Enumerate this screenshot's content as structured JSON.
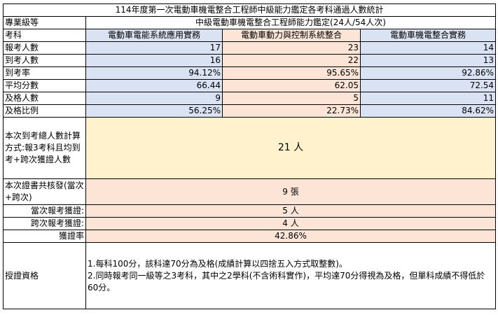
{
  "title": "114年度第一次電動車機電整合工程師中級能力鑑定各考科通過人數統計",
  "level": {
    "label": "專業級等",
    "value": "中級電動車機電整合工程師能力鑑定(24人/54人次)"
  },
  "subjects": {
    "label": "考科",
    "items": [
      "電動車電能系統應用實務",
      "電動車動力與控制系統整合",
      "電動車機電整合實務"
    ]
  },
  "rows": [
    {
      "label": "報考人數",
      "values": [
        "17",
        "23",
        "14"
      ]
    },
    {
      "label": "到考人數",
      "values": [
        "16",
        "22",
        "13"
      ]
    },
    {
      "label": "到考率",
      "values": [
        "94.12%",
        "95.65%",
        "92.86%"
      ]
    },
    {
      "label": "平均分數",
      "values": [
        "66.44",
        "62.05",
        "72.54"
      ]
    },
    {
      "label": "及格人數",
      "values": [
        "9",
        "5",
        "11"
      ]
    },
    {
      "label": "及格比例",
      "values": [
        "56.25%",
        "22.73%",
        "84.62%"
      ]
    }
  ],
  "total": {
    "label": "本次到考總人數計算方式:報3考科且均到考+跨次獲證人數",
    "value": "21 人"
  },
  "certs": {
    "label": "本次證書共核發(當次+跨次)",
    "value": "9 張"
  },
  "current": {
    "label": "當次報考獲證:",
    "value": "5 人"
  },
  "cross": {
    "label": "跨次報考獲證:",
    "value": "4 人"
  },
  "rate": {
    "label": "獲證率",
    "value": "42.86%"
  },
  "qualification": {
    "label": "授證資格",
    "lines": [
      "1.每科100分，該科達70分為及格(成績計算以四捨五入方式取整數)。",
      "2.同時報考同一級等之3考科，其中之2學科(不含術科實作)，平均達70分得視為及格，但單科成績不得低於60分。"
    ]
  },
  "colors": {
    "blue": "#dae3f3",
    "peach": "#fce4d6",
    "yellow": "#fff2cc"
  }
}
